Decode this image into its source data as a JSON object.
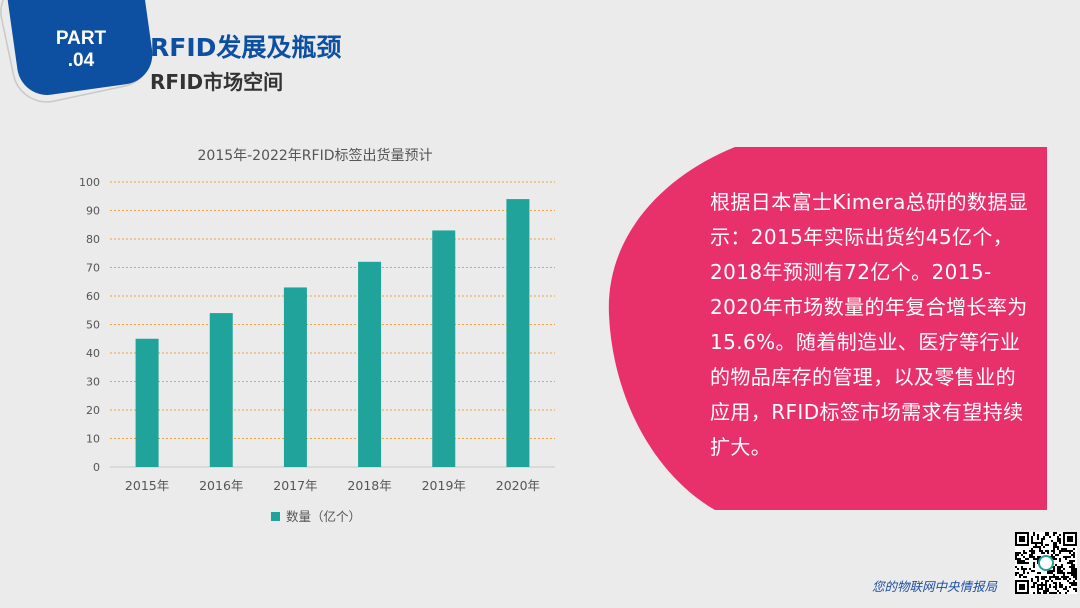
{
  "header": {
    "part_label": "PART",
    "part_number": ".04",
    "title": "RFID发展及瓶颈",
    "subtitle": "RFID市场空间"
  },
  "colors": {
    "brand_blue": "#0d4fa0",
    "bar_teal": "#1fa39a",
    "panel_pink": "#e8306a",
    "grid_orange": "#f0a23c"
  },
  "chart_data": {
    "type": "bar",
    "title": "2015年-2022年RFID标签出货量预计",
    "categories": [
      "2015年",
      "2016年",
      "2017年",
      "2018年",
      "2019年",
      "2020年"
    ],
    "series": [
      {
        "name": "数量（亿个）",
        "values": [
          45,
          54,
          63,
          72,
          83,
          94
        ]
      }
    ],
    "ylim": [
      0,
      100
    ],
    "yticks": [
      0,
      10,
      20,
      30,
      40,
      50,
      60,
      70,
      80,
      90,
      100
    ],
    "grid": true,
    "legend_position": "bottom"
  },
  "panel": {
    "text": "根据日本富士Kimera总研的数据显示：2015年实际出货约45亿个，2018年预测有72亿个。2015-2020年市场数量的年复合增长率为15.6%。随着制造业、医疗等行业的物品库存的管理，以及零售业的应用，RFID标签市场需求有望持续扩大。"
  },
  "footer": {
    "text": "您的物联网中央情报局"
  }
}
